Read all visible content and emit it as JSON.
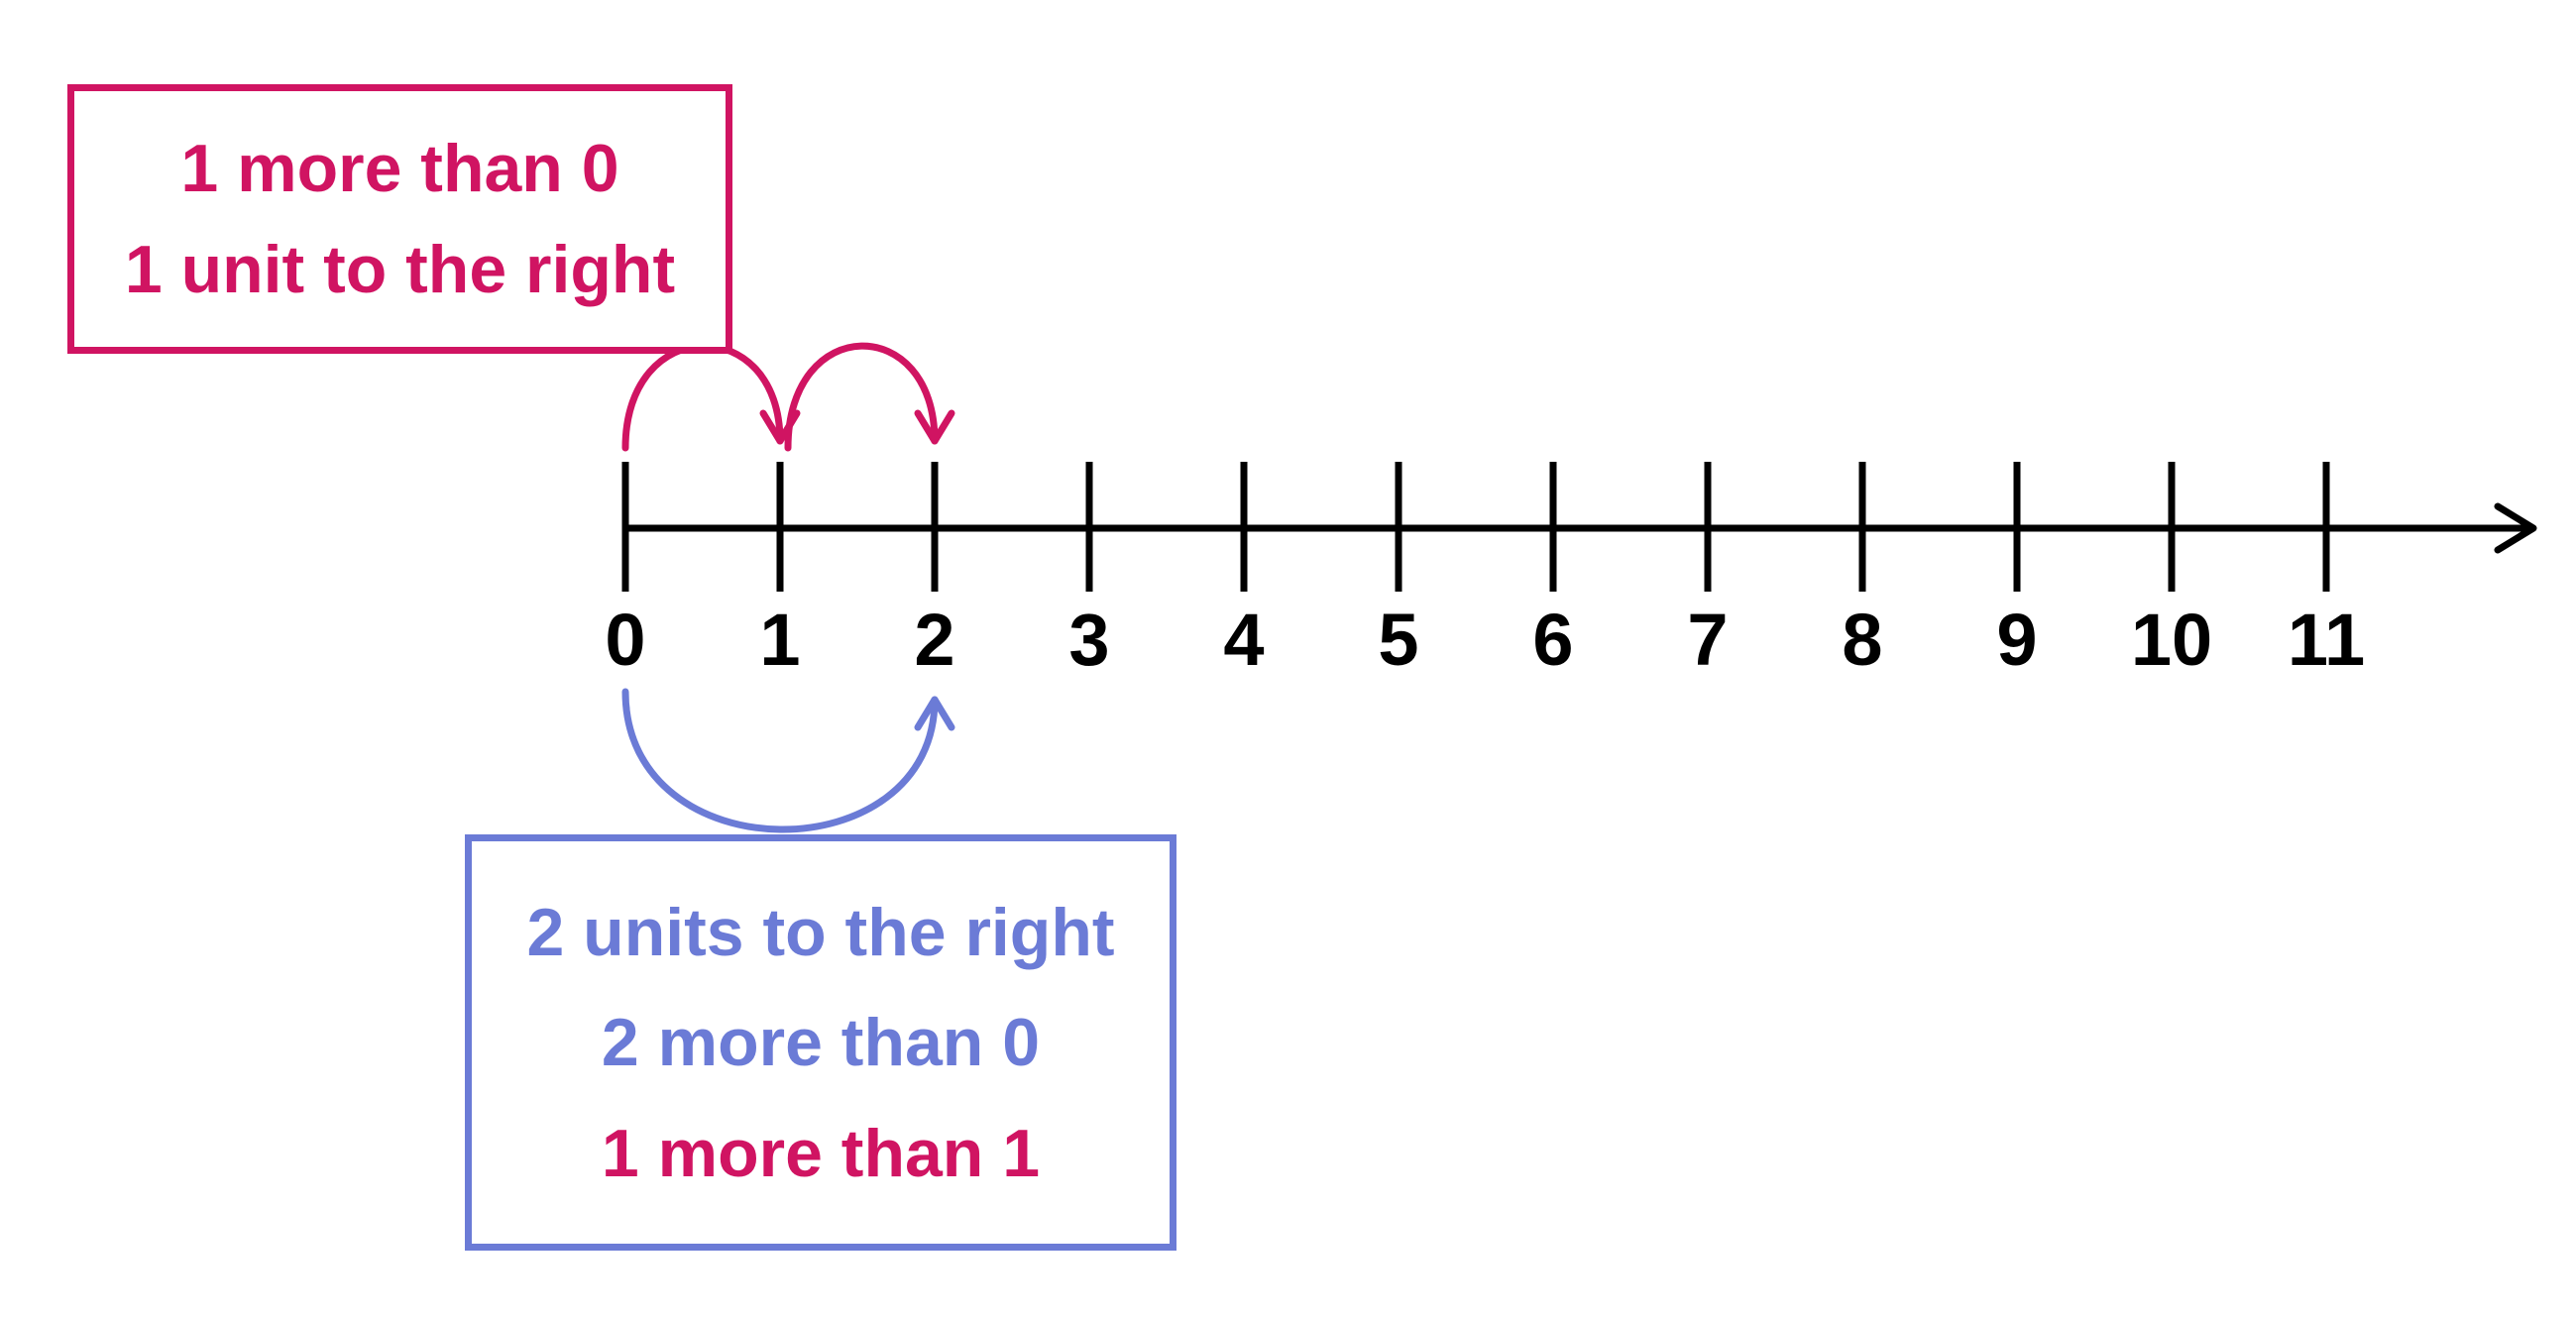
{
  "colors": {
    "axis": "#000000",
    "magenta": "#d01462",
    "blue": "#6b7bd6"
  },
  "number_line": {
    "min": 0,
    "max": 11,
    "tick_labels": [
      "0",
      "1",
      "2",
      "3",
      "4",
      "5",
      "6",
      "7",
      "8",
      "9",
      "10",
      "11"
    ],
    "arrow_direction": "right"
  },
  "jumps": [
    {
      "from": 0,
      "to": 1,
      "side": "above",
      "color": "magenta"
    },
    {
      "from": 1,
      "to": 2,
      "side": "above",
      "color": "magenta"
    },
    {
      "from": 0,
      "to": 2,
      "side": "below",
      "color": "blue"
    }
  ],
  "callout_top": {
    "lines": [
      {
        "text": "1 more than 0",
        "color": "magenta"
      },
      {
        "text": "1 unit to the right",
        "color": "magenta"
      }
    ]
  },
  "callout_bottom": {
    "lines": [
      {
        "text": "2 units to the right",
        "color": "blue"
      },
      {
        "text": "2 more than 0",
        "color": "blue"
      },
      {
        "text": "1 more than 1",
        "color": "magenta"
      }
    ]
  }
}
